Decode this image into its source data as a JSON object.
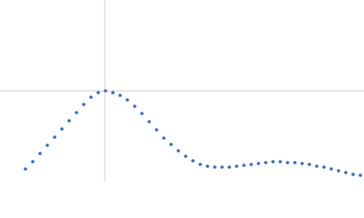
{
  "chart_data": {
    "type": "scatter",
    "color": "#3a6ab5",
    "x": [
      28,
      36,
      44,
      52,
      60,
      68,
      76,
      84,
      92,
      100,
      108,
      116,
      124,
      132,
      140,
      148,
      156,
      164,
      172,
      180,
      188,
      196,
      204,
      212,
      220,
      228,
      236,
      244,
      252,
      260,
      268,
      276,
      284,
      292,
      300,
      308,
      316,
      324,
      332,
      340,
      348,
      356,
      364,
      372,
      380,
      388,
      396
    ],
    "values": [
      14,
      22,
      31,
      40,
      49,
      58,
      67,
      76,
      85,
      93,
      98,
      100,
      98,
      95,
      90,
      83,
      75,
      66,
      57,
      48,
      41,
      34,
      28,
      23,
      19,
      17,
      16,
      16,
      16,
      17,
      18,
      19,
      20,
      21,
      22,
      22,
      21,
      21,
      20,
      19,
      17,
      16,
      14,
      12,
      10,
      8,
      7
    ],
    "xlim": [
      0,
      400
    ],
    "ylim": [
      0,
      200
    ],
    "xref": 115,
    "yref": 100
  }
}
